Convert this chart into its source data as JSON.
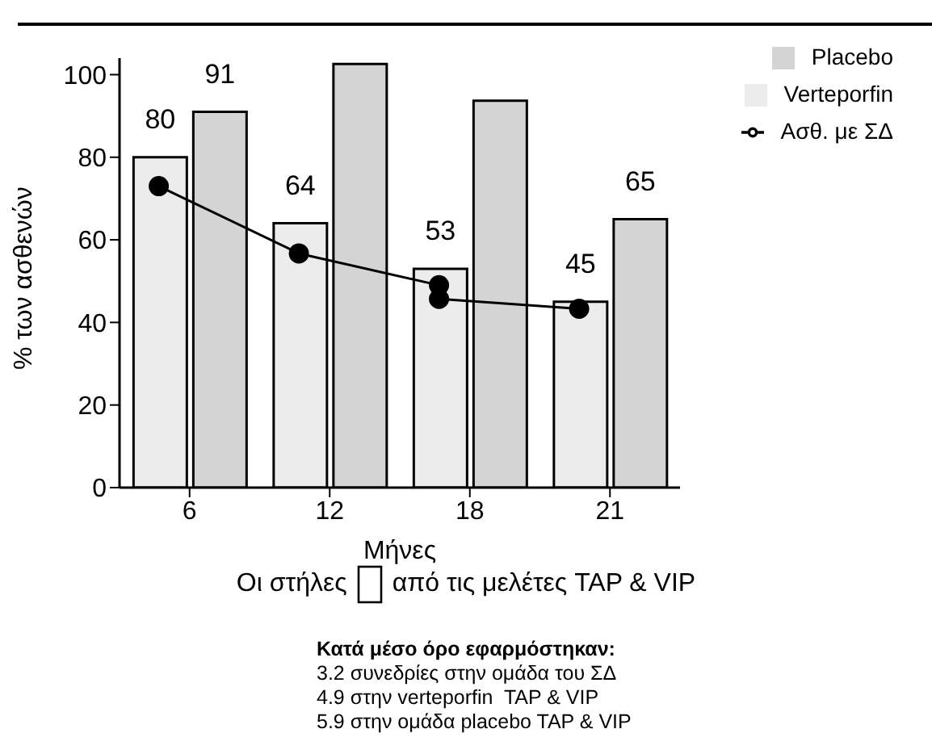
{
  "chart_data": {
    "type": "bar",
    "xlabel": "Μήνες",
    "ylabel": "% των ασθενών",
    "categories": [
      "6",
      "12",
      "18",
      "21"
    ],
    "series": [
      {
        "name": "Ασθ. με ΣΔ",
        "type": "line",
        "color": "#000000",
        "marker": "circle",
        "x": [
          "6",
          "12",
          "18",
          "18",
          "21"
        ],
        "values": [
          73,
          56.7,
          49,
          45.7,
          43.3
        ]
      },
      {
        "name": "Verteporfin",
        "color": "#ececec",
        "values": [
          80,
          64,
          53,
          45
        ],
        "value_labels": [
          "80",
          "64",
          "53",
          "45"
        ]
      },
      {
        "name": "Placebo",
        "color": "#d4d4d4",
        "values": [
          91,
          102.6,
          93.7,
          65
        ],
        "value_labels": [
          "91",
          null,
          null,
          "65"
        ]
      }
    ],
    "ylim": [
      0,
      104
    ],
    "yticks": [
      0,
      20,
      40,
      60,
      80,
      100
    ],
    "grid": false,
    "legend": "top right",
    "annotations": [
      "Οι στήλες",
      "από τις μελέτες TAP & VIP",
      "Κατά μέσο όρο εφαρμόστηκαν:",
      "3.2 συνεδρίες στην ομάδα του ΣΔ",
      "4.9 στην verteporfin  TAP & VIP",
      "5.9 στην ομάδα placebo TAP & VIP"
    ]
  }
}
